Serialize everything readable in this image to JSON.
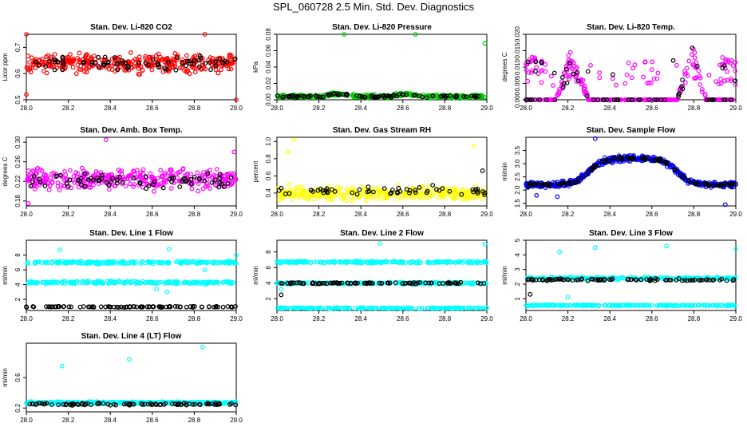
{
  "title": "SPL_060728  2.5 Min. Std. Dev. Diagnostics",
  "chart_data": [
    {
      "type": "scatter",
      "title": "Stan. Dev. Li-820 CO2",
      "ylabel": "Licor ppm",
      "xlim": [
        28.0,
        29.0
      ],
      "ylim": [
        0.5,
        0.75
      ],
      "xticks": [
        "28.0",
        "28.2",
        "28.4",
        "28.6",
        "28.8",
        "29.0"
      ],
      "yticks": [
        0.5,
        0.6,
        0.7
      ],
      "ytick_labels": [
        "0.5",
        "0.6",
        "0.7"
      ],
      "series": [
        {
          "color": "#ff0000",
          "pattern": "band",
          "center": 0.64,
          "spread": 0.05,
          "n": 340,
          "extras": [
            [
              28.0,
              0.77
            ],
            [
              28.0,
              0.52
            ],
            [
              29.0,
              0.48
            ],
            [
              28.85,
              0.78
            ]
          ]
        },
        {
          "color": "#000000",
          "pattern": "band",
          "center": 0.64,
          "spread": 0.035,
          "n": 70,
          "extras": []
        }
      ]
    },
    {
      "type": "scatter",
      "title": "Stan. Dev. Li-820 Pressure",
      "ylabel": "kPa",
      "xlim": [
        28.0,
        29.0
      ],
      "ylim": [
        0.0,
        0.08
      ],
      "xticks": [
        "28.0",
        "28.2",
        "28.4",
        "28.6",
        "28.8",
        "29.0"
      ],
      "yticks": [
        0.0,
        0.02,
        0.04,
        0.06,
        0.08
      ],
      "ytick_labels": [
        "0.00",
        "0.02",
        "0.04",
        "0.06",
        "0.08"
      ],
      "series": [
        {
          "color": "#00cc00",
          "pattern": "wave",
          "center": 0.004,
          "spread": 0.003,
          "amp": 0.003,
          "n": 330,
          "extras": [
            [
              28.32,
              0.082
            ],
            [
              28.66,
              0.08
            ],
            [
              28.99,
              0.069
            ]
          ]
        },
        {
          "color": "#000000",
          "pattern": "wave",
          "center": 0.004,
          "spread": 0.002,
          "amp": 0.003,
          "n": 90,
          "extras": []
        }
      ]
    },
    {
      "type": "scatter",
      "title": "Stan. Dev. Li-820 Temp.",
      "ylabel": "degrees C",
      "xlim": [
        28.0,
        29.0
      ],
      "ylim": [
        0.0,
        0.02
      ],
      "xticks": [
        "28.0",
        "28.2",
        "28.4",
        "28.6",
        "28.8",
        "29.0"
      ],
      "yticks": [
        0.0,
        0.005,
        0.01,
        0.015,
        0.02
      ],
      "ytick_labels": [
        "0.000",
        "0.005",
        "0.010",
        "0.015",
        "0.020"
      ],
      "series": [
        {
          "color": "#ff00ff",
          "pattern": "temp",
          "center": 0.0,
          "spread": 0.002,
          "n": 340,
          "extras": [
            [
              28.0,
              0.011
            ],
            [
              28.03,
              0.013
            ],
            [
              28.98,
              0.012
            ],
            [
              28.93,
              0.005
            ]
          ]
        },
        {
          "color": "#000000",
          "pattern": "temp",
          "center": 0.0,
          "spread": 0.002,
          "n": 70,
          "extras": []
        }
      ]
    },
    {
      "type": "scatter",
      "title": "Stan. Dev. Amb. Box Temp.",
      "ylabel": "degrees C",
      "xlim": [
        28.0,
        29.0
      ],
      "ylim": [
        0.17,
        0.31
      ],
      "xticks": [
        "28.0",
        "28.2",
        "28.4",
        "28.6",
        "28.8",
        "29.0"
      ],
      "yticks": [
        0.18,
        0.22,
        0.26,
        0.3
      ],
      "ytick_labels": [
        "0.18",
        "0.22",
        "0.26",
        "0.30"
      ],
      "series": [
        {
          "color": "#ff00ff",
          "pattern": "band",
          "center": 0.225,
          "spread": 0.03,
          "n": 340,
          "extras": [
            [
              28.38,
              0.305
            ],
            [
              28.99,
              0.28
            ],
            [
              28.01,
              0.175
            ]
          ]
        },
        {
          "color": "#000000",
          "pattern": "band",
          "center": 0.22,
          "spread": 0.02,
          "n": 70,
          "extras": []
        }
      ]
    },
    {
      "type": "scatter",
      "title": "Stan. Dev. Gas Stream RH",
      "ylabel": "percent",
      "xlim": [
        28.0,
        29.0
      ],
      "ylim": [
        0.25,
        1.05
      ],
      "xticks": [
        "28.0",
        "28.2",
        "28.4",
        "28.6",
        "28.8",
        "29.0"
      ],
      "yticks": [
        0.4,
        0.6,
        0.8,
        1.0
      ],
      "ytick_labels": [
        "0.4",
        "0.6",
        "0.8",
        "1.0"
      ],
      "series": [
        {
          "color": "#ffff00",
          "pattern": "band",
          "center": 0.4,
          "spread": 0.11,
          "n": 340,
          "extras": [
            [
              28.08,
              1.02
            ],
            [
              28.05,
              0.88
            ],
            [
              28.94,
              0.95
            ]
          ]
        },
        {
          "color": "#000000",
          "pattern": "band",
          "center": 0.42,
          "spread": 0.08,
          "n": 55,
          "extras": [
            [
              28.98,
              0.66
            ]
          ]
        }
      ]
    },
    {
      "type": "scatter",
      "title": "Stan. Dev. Sample Flow",
      "ylabel": "ml/min",
      "xlim": [
        28.0,
        29.0
      ],
      "ylim": [
        1.4,
        4.0
      ],
      "xticks": [
        "28.0",
        "28.2",
        "28.4",
        "28.6",
        "28.8",
        "29.0"
      ],
      "yticks": [
        1.5,
        2.0,
        2.5,
        3.0,
        3.5
      ],
      "ytick_labels": [
        "1.5",
        "2.0",
        "2.5",
        "3.0",
        "3.5"
      ],
      "series": [
        {
          "color": "#0000ff",
          "pattern": "flow",
          "center": 2.2,
          "spread": 0.15,
          "n": 420,
          "extras": [
            [
              28.33,
              3.95
            ],
            [
              28.05,
              1.8
            ],
            [
              28.95,
              1.45
            ],
            [
              28.15,
              1.75
            ]
          ]
        },
        {
          "color": "#000000",
          "pattern": "flow",
          "center": 2.2,
          "spread": 0.08,
          "n": 110,
          "extras": []
        }
      ]
    },
    {
      "type": "scatter",
      "title": "Stan. Dev. Line 1 Flow",
      "ylabel": "ml/min",
      "xlim": [
        28.0,
        29.0
      ],
      "ylim": [
        0.5,
        10.0
      ],
      "xticks": [
        "28.0",
        "28.2",
        "28.4",
        "28.6",
        "28.8",
        "29.0"
      ],
      "yticks": [
        2,
        4,
        6,
        8
      ],
      "ytick_labels": [
        "2",
        "4",
        "6",
        "8"
      ],
      "series": [
        {
          "color": "#00ffff",
          "pattern": "band",
          "center": 7.0,
          "spread": 0.25,
          "n": 220,
          "extras": [
            [
              28.16,
              8.7
            ],
            [
              28.68,
              8.8
            ],
            [
              28.85,
              6.0
            ],
            [
              29.0,
              8.0
            ]
          ]
        },
        {
          "color": "#00ffff",
          "pattern": "band",
          "center": 4.3,
          "spread": 0.25,
          "n": 220,
          "extras": [
            [
              28.62,
              3.4
            ],
            [
              28.67,
              3.0
            ],
            [
              28.85,
              4.0
            ]
          ]
        },
        {
          "color": "#000000",
          "pattern": "band",
          "center": 1.0,
          "spread": 0.1,
          "n": 90,
          "extras": []
        }
      ]
    },
    {
      "type": "scatter",
      "title": "Stan. Dev. Line 2 Flow",
      "ylabel": "ml/min",
      "xlim": [
        28.0,
        29.0
      ],
      "ylim": [
        0.5,
        9.5
      ],
      "xticks": [
        "28.0",
        "28.2",
        "28.4",
        "28.6",
        "28.8",
        "29.0"
      ],
      "yticks": [
        2,
        4,
        6,
        8
      ],
      "ytick_labels": [
        "2",
        "4",
        "6",
        "8"
      ],
      "series": [
        {
          "color": "#00ffff",
          "pattern": "band",
          "center": 6.7,
          "spread": 0.2,
          "n": 220,
          "extras": [
            [
              28.49,
              9.1
            ],
            [
              28.99,
              9.0
            ],
            [
              28.02,
              3.2
            ]
          ]
        },
        {
          "color": "#00ffff",
          "pattern": "band",
          "center": 4.0,
          "spread": 0.2,
          "n": 200,
          "extras": []
        },
        {
          "color": "#00ffff",
          "pattern": "band",
          "center": 0.8,
          "spread": 0.08,
          "n": 200,
          "extras": []
        },
        {
          "color": "#000000",
          "pattern": "band",
          "center": 4.0,
          "spread": 0.15,
          "n": 90,
          "extras": [
            [
              28.02,
              2.5
            ]
          ]
        }
      ]
    },
    {
      "type": "scatter",
      "title": "Stan. Dev. Line 3 Flow",
      "ylabel": "ml/min",
      "xlim": [
        28.0,
        29.0
      ],
      "ylim": [
        0.2,
        5.0
      ],
      "xticks": [
        "28.0",
        "28.2",
        "28.4",
        "28.6",
        "28.8",
        "29.0"
      ],
      "yticks": [
        1,
        2,
        3,
        4,
        5
      ],
      "ytick_labels": [
        "1",
        "2",
        "3",
        "4",
        "5"
      ],
      "series": [
        {
          "color": "#00ffff",
          "pattern": "band",
          "center": 2.4,
          "spread": 0.12,
          "n": 230,
          "extras": [
            [
              28.16,
              4.2
            ],
            [
              28.33,
              4.5
            ],
            [
              28.67,
              4.6
            ],
            [
              29.0,
              4.4
            ],
            [
              28.2,
              1.1
            ]
          ]
        },
        {
          "color": "#00ffff",
          "pattern": "band",
          "center": 0.55,
          "spread": 0.06,
          "n": 220,
          "extras": []
        },
        {
          "color": "#000000",
          "pattern": "band",
          "center": 2.3,
          "spread": 0.1,
          "n": 90,
          "extras": [
            [
              28.02,
              1.3
            ]
          ]
        }
      ]
    },
    {
      "type": "scatter",
      "title": "Stan. Dev. Line 4 (LT) Flow",
      "ylabel": "ml/min",
      "xlim": [
        28.0,
        29.0
      ],
      "ylim": [
        0.15,
        1.05
      ],
      "xticks": [
        "28.0",
        "28.2",
        "28.4",
        "28.6",
        "28.8",
        "29.0"
      ],
      "yticks": [
        0.2,
        0.6
      ],
      "ytick_labels": [
        "0.2",
        "0.6"
      ],
      "series": [
        {
          "color": "#00ffff",
          "pattern": "band",
          "center": 0.27,
          "spread": 0.02,
          "n": 330,
          "extras": [
            [
              28.17,
              0.75
            ],
            [
              28.49,
              0.84
            ],
            [
              28.84,
              1.0
            ]
          ]
        },
        {
          "color": "#000000",
          "pattern": "band",
          "center": 0.25,
          "spread": 0.02,
          "n": 90,
          "extras": []
        }
      ]
    }
  ]
}
